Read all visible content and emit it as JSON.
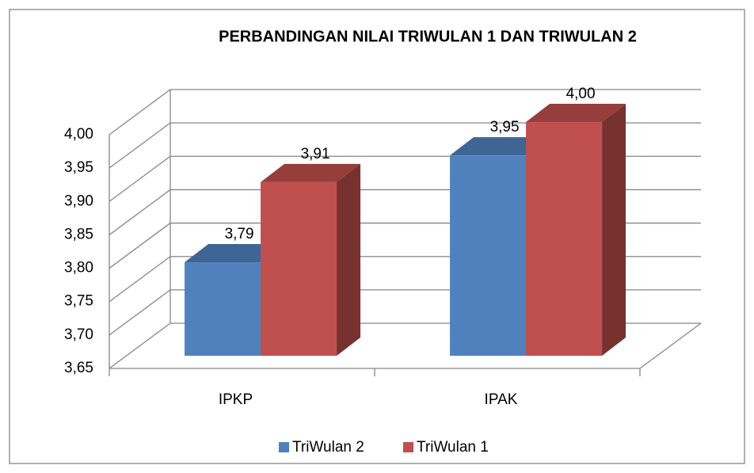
{
  "chart_data": {
    "type": "bar3d",
    "title": "PERBANDINGAN NILAI  TRIWULAN 1 DAN TRIWULAN 2",
    "categories": [
      "IPKP",
      "IPAK"
    ],
    "series": [
      {
        "name": "TriWulan 2",
        "color": "#4f81bd",
        "values": [
          3.79,
          3.95
        ],
        "value_labels": [
          "3,79",
          "3,95"
        ]
      },
      {
        "name": "TriWulan 1",
        "color": "#c0504d",
        "values": [
          3.91,
          4.0
        ],
        "value_labels": [
          "3,91",
          "4,00"
        ]
      }
    ],
    "ylim": [
      3.65,
      4.0
    ],
    "yticks": [
      {
        "value": 3.65,
        "label": "3,65"
      },
      {
        "value": 3.7,
        "label": "3,70"
      },
      {
        "value": 3.75,
        "label": "3,75"
      },
      {
        "value": 3.8,
        "label": "3,80"
      },
      {
        "value": 3.85,
        "label": "3,85"
      },
      {
        "value": 3.9,
        "label": "3,90"
      },
      {
        "value": 3.95,
        "label": "3,95"
      },
      {
        "value": 4.0,
        "label": "4,00"
      }
    ],
    "grid": true,
    "legend": "bottom"
  }
}
